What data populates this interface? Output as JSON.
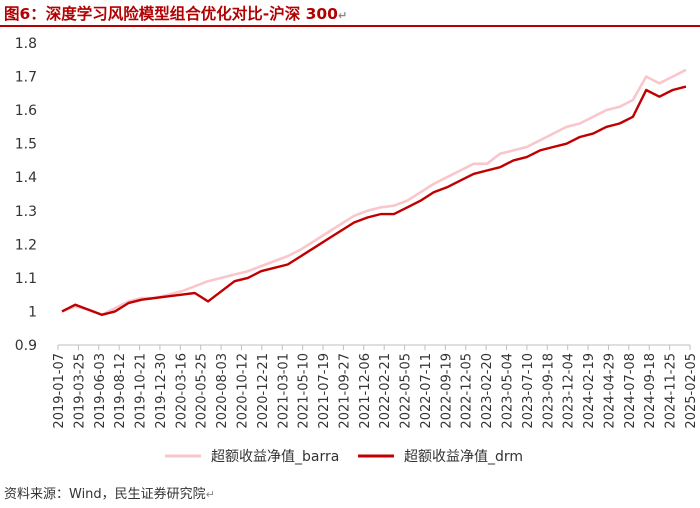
{
  "title": "图6：深度学习风险模型组合优化对比-沪深 300",
  "source": "资料来源：Wind，民生证券研究院",
  "colors": {
    "title": "#b30000",
    "barra": "#f9c6cb",
    "drm": "#c00000"
  },
  "chart_data": {
    "type": "line",
    "title": "",
    "xlabel": "",
    "ylabel": "",
    "ylim": [
      0.9,
      1.8
    ],
    "yticks": [
      "0.9",
      "1",
      "1.1",
      "1.2",
      "1.3",
      "1.4",
      "1.5",
      "1.6",
      "1.7",
      "1.8"
    ],
    "xticks": [
      "2019-01-07",
      "2019-03-25",
      "2019-06-03",
      "2019-08-12",
      "2019-10-21",
      "2019-12-30",
      "2020-03-16",
      "2020-05-25",
      "2020-08-03",
      "2020-10-12",
      "2020-12-21",
      "2021-03-01",
      "2021-05-10",
      "2021-07-19",
      "2021-09-27",
      "2021-12-06",
      "2022-02-21",
      "2022-05-05",
      "2022-07-11",
      "2022-09-19",
      "2022-12-05",
      "2023-02-20",
      "2023-05-04",
      "2023-07-10",
      "2023-09-18",
      "2023-12-04",
      "2024-02-19",
      "2024-04-29",
      "2024-07-08",
      "2024-09-18",
      "2024-11-25",
      "2025-02-05"
    ],
    "grid": false,
    "legend": "bottom",
    "series": [
      {
        "name": "超额收益净值_barra",
        "values": [
          1.0,
          1.015,
          1.005,
          0.99,
          1.01,
          1.03,
          1.04,
          1.04,
          1.05,
          1.06,
          1.075,
          1.09,
          1.1,
          1.11,
          1.12,
          1.135,
          1.15,
          1.165,
          1.185,
          1.21,
          1.235,
          1.26,
          1.285,
          1.3,
          1.31,
          1.315,
          1.33,
          1.355,
          1.38,
          1.4,
          1.42,
          1.44,
          1.44,
          1.47,
          1.48,
          1.49,
          1.51,
          1.53,
          1.55,
          1.56,
          1.58,
          1.6,
          1.61,
          1.63,
          1.7,
          1.68,
          1.7,
          1.72
        ]
      },
      {
        "name": "超额收益净值_drm",
        "values": [
          1.0,
          1.02,
          1.005,
          0.99,
          1.0,
          1.025,
          1.035,
          1.04,
          1.045,
          1.05,
          1.055,
          1.03,
          1.06,
          1.09,
          1.1,
          1.12,
          1.13,
          1.14,
          1.165,
          1.19,
          1.215,
          1.24,
          1.265,
          1.28,
          1.29,
          1.29,
          1.31,
          1.33,
          1.355,
          1.37,
          1.39,
          1.41,
          1.42,
          1.43,
          1.45,
          1.46,
          1.48,
          1.49,
          1.5,
          1.52,
          1.53,
          1.55,
          1.56,
          1.58,
          1.66,
          1.64,
          1.66,
          1.67
        ]
      }
    ]
  }
}
